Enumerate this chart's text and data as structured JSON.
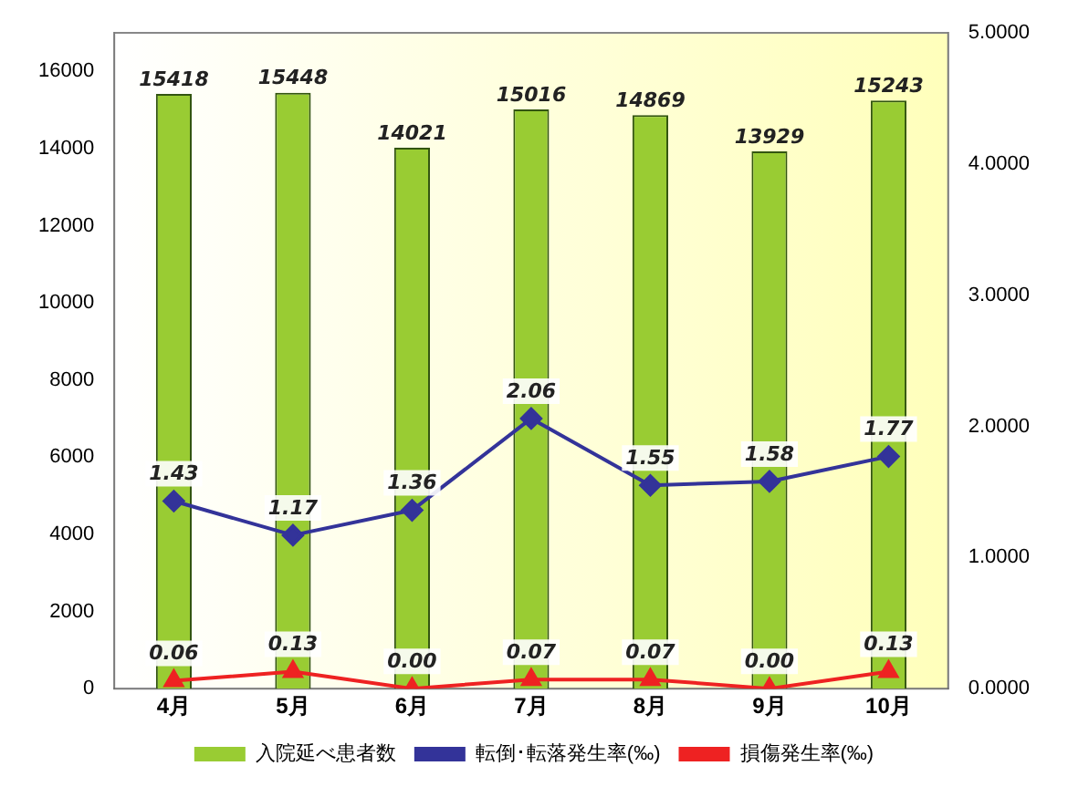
{
  "chart_data": {
    "type": "bar",
    "categories": [
      "4月",
      "5月",
      "6月",
      "7月",
      "8月",
      "9月",
      "10月"
    ],
    "series": [
      {
        "name": "入院延べ患者数",
        "color": "#99cc33",
        "values": [
          15418,
          15448,
          14021,
          15016,
          14869,
          13929,
          15243
        ],
        "value_labels": [
          "15418",
          "15448",
          "14021",
          "15016",
          "14869",
          "13929",
          "15243"
        ]
      },
      {
        "name": "転倒･転落発生率(‰)",
        "type": "line",
        "axis": "y2",
        "color": "#333399",
        "marker": "diamond",
        "values": [
          1.43,
          1.17,
          1.36,
          2.06,
          1.55,
          1.58,
          1.77
        ],
        "value_labels": [
          "1.43",
          "1.17",
          "1.36",
          "2.06",
          "1.55",
          "1.58",
          "1.77"
        ]
      },
      {
        "name": "損傷発生率(‰)",
        "type": "line",
        "axis": "y2",
        "color": "#ee2222",
        "marker": "triangle",
        "values": [
          0.06,
          0.13,
          0.0,
          0.07,
          0.07,
          0.0,
          0.13
        ],
        "value_labels": [
          "0.06",
          "0.13",
          "0.00",
          "0.07",
          "0.07",
          "0.00",
          "0.13"
        ]
      }
    ],
    "ylim": [
      0,
      17000
    ],
    "yticks": [
      0,
      2000,
      4000,
      6000,
      8000,
      10000,
      12000,
      14000,
      16000
    ],
    "y2lim": [
      0,
      5
    ],
    "y2ticks": [
      {
        "value": 0,
        "label": "0.0000"
      },
      {
        "value": 1,
        "label": "1.0000"
      },
      {
        "value": 2,
        "label": "2.0000"
      },
      {
        "value": 3,
        "label": "3.0000"
      },
      {
        "value": 4,
        "label": "4.0000"
      },
      {
        "value": 5,
        "label": "5.0000"
      }
    ],
    "grid": false,
    "legend": "bottom"
  }
}
